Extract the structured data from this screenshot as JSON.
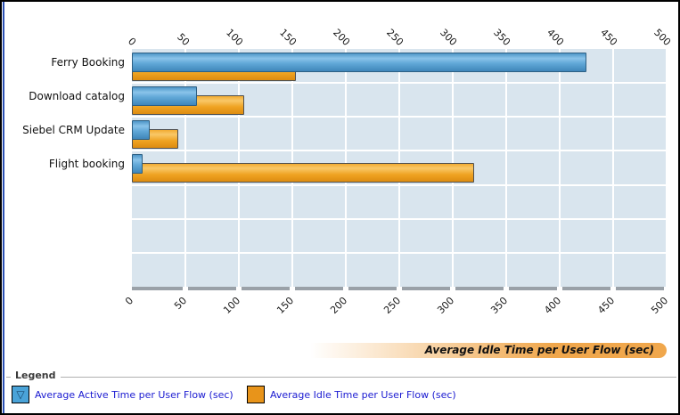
{
  "chart_data": {
    "type": "bar",
    "orientation": "horizontal",
    "title": "",
    "categories": [
      "Ferry Booking",
      "Download catalog",
      "Siebel CRM Update",
      "Flight booking"
    ],
    "series": [
      {
        "name": "Average Active Time per User Flow (sec)",
        "key": "active",
        "color": "#4e96c8",
        "values": [
          425,
          61,
          17,
          10
        ]
      },
      {
        "name": "Average Idle Time per User Flow (sec)",
        "key": "idle",
        "color": "#ee9f1e",
        "values": [
          153,
          105,
          43,
          320
        ]
      }
    ],
    "x_axis": {
      "min": 0,
      "max": 500,
      "tick_step": 50,
      "ticks": [
        0,
        50,
        100,
        150,
        200,
        250,
        300,
        350,
        400,
        450,
        500
      ],
      "labels_position": "top-and-bottom",
      "labels_rotated": true,
      "title": "Average Idle Time per User Flow (sec)"
    },
    "grid": true,
    "row_slots": 7,
    "plot_background": "#d9e5ee",
    "gridline_color": "#ffffff"
  },
  "legend": {
    "title": "Legend",
    "items": [
      {
        "label": "Average Active Time per User Flow (sec)",
        "swatch": "active",
        "marker_icon": "triangle-down-marker",
        "marker_glyph": "▽"
      },
      {
        "label": "Average Idle Time per User Flow (sec)",
        "swatch": "idle",
        "marker_icon": "",
        "marker_glyph": ""
      }
    ],
    "label_color": "#1a1ad1"
  },
  "frame": {
    "accent_color": "#2a50b4",
    "border_color": "#000000"
  }
}
